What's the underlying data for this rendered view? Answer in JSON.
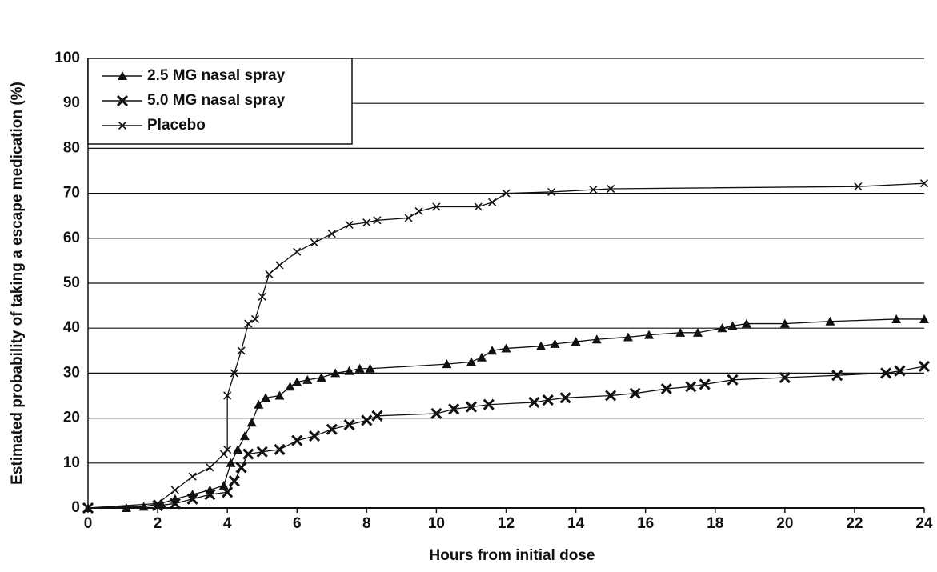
{
  "chart_data": {
    "type": "line",
    "x_label": "Hours from initial dose",
    "y_label": "Estimated probability of taking a escape medication (%)",
    "xlim": [
      0,
      24
    ],
    "xticks": [
      0,
      2,
      4,
      6,
      8,
      10,
      12,
      14,
      16,
      18,
      20,
      22,
      24
    ],
    "ylim": [
      0,
      100
    ],
    "yticks": [
      0,
      10,
      20,
      30,
      40,
      50,
      60,
      70,
      80,
      90,
      100
    ],
    "grid": true,
    "legend": "top-left",
    "series": [
      {
        "name": "2.5 MG nasal spray",
        "color": "#111111",
        "marker": "triangle",
        "x": [
          0,
          1.1,
          1.6,
          2.1,
          2.5,
          3,
          3.5,
          3.9,
          4.1,
          4.3,
          4.5,
          4.7,
          4.9,
          5.1,
          5.5,
          5.8,
          6,
          6.3,
          6.7,
          7.1,
          7.5,
          7.8,
          8.1,
          10.3,
          11,
          11.3,
          11.6,
          12,
          13,
          13.4,
          14,
          14.6,
          15.5,
          16.1,
          17,
          17.5,
          18.2,
          18.5,
          18.9,
          20,
          21.3,
          23.2,
          24
        ],
        "values": [
          0,
          0,
          0.3,
          1,
          2,
          3,
          4,
          5,
          10,
          13,
          16,
          19,
          23,
          24.5,
          25,
          27,
          28,
          28.5,
          29,
          30,
          30.5,
          31,
          31,
          32,
          32.5,
          33.5,
          35,
          35.5,
          36,
          36.5,
          37,
          37.5,
          38,
          38.5,
          39,
          39,
          40,
          40.5,
          41,
          41,
          41.5,
          42,
          42
        ]
      },
      {
        "name": "5.0 MG nasal spray",
        "color": "#111111",
        "marker": "bigx",
        "x": [
          0,
          2,
          2.5,
          3,
          3.5,
          4,
          4.2,
          4.4,
          4.6,
          5,
          5.5,
          6,
          6.5,
          7,
          7.5,
          8,
          8.3,
          10,
          10.5,
          11,
          11.5,
          12.8,
          13.2,
          13.7,
          15,
          15.7,
          16.6,
          17.3,
          17.7,
          18.5,
          20,
          21.5,
          22.9,
          23.3,
          24
        ],
        "values": [
          0,
          0.5,
          1,
          2,
          3,
          3.5,
          6,
          9,
          12,
          12.5,
          13,
          15,
          16,
          17.5,
          18.5,
          19.5,
          20.5,
          21,
          22,
          22.5,
          23,
          23.5,
          24,
          24.5,
          25,
          25.5,
          26.5,
          27,
          27.5,
          28.5,
          29,
          29.5,
          30,
          30.5,
          31.5
        ]
      },
      {
        "name": "Placebo",
        "color": "#111111",
        "marker": "smallx",
        "x": [
          0,
          2,
          2.5,
          3,
          3.5,
          3.9,
          4,
          4,
          4.2,
          4.4,
          4.6,
          4.8,
          5,
          5.2,
          5.5,
          6,
          6.5,
          7,
          7.5,
          8,
          8.3,
          9.2,
          9.5,
          10,
          11.2,
          11.6,
          12,
          13.3,
          14.5,
          15,
          22.1,
          24
        ],
        "values": [
          0,
          1,
          4,
          7,
          9,
          12,
          13,
          25,
          30,
          35,
          41,
          42,
          47,
          52,
          54,
          57,
          59,
          61,
          63,
          63.5,
          64,
          64.5,
          66,
          67,
          67,
          68,
          70,
          70.3,
          70.8,
          71,
          71.5,
          72.2
        ]
      }
    ]
  }
}
